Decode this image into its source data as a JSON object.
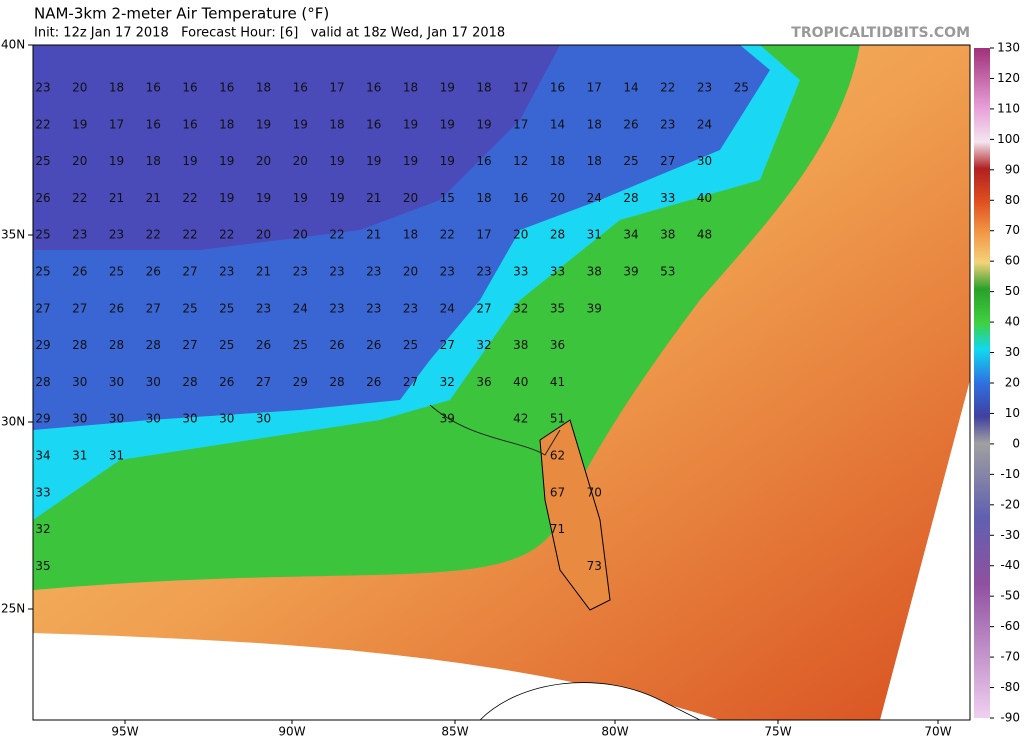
{
  "header": {
    "title": "NAM-3km 2-meter Air Temperature (°F)",
    "subtitle": "Init: 12z Jan 17 2018   Forecast Hour: [6]   valid at 18z Wed, Jan 17 2018",
    "brand": "TROPICALTIDBITS.COM"
  },
  "latitude_labels": [
    "40N",
    "35N",
    "30N",
    "25N"
  ],
  "longitude_labels": [
    "95W",
    "90W",
    "85W",
    "80W",
    "75W",
    "70W"
  ],
  "colorbar_ticks": [
    130,
    120,
    110,
    100,
    90,
    80,
    70,
    60,
    50,
    40,
    30,
    20,
    10,
    0,
    -10,
    -20,
    -30,
    -40,
    -50,
    -60,
    -70,
    -80,
    -90
  ],
  "station_grid": [
    [
      23,
      20,
      18,
      16,
      16,
      16,
      18,
      16,
      17,
      16,
      18,
      19,
      18,
      17,
      16,
      17,
      14,
      22,
      23,
      25
    ],
    [
      22,
      19,
      17,
      16,
      16,
      18,
      19,
      19,
      18,
      16,
      19,
      19,
      19,
      17,
      14,
      18,
      26,
      23,
      24,
      null
    ],
    [
      25,
      20,
      19,
      18,
      19,
      19,
      20,
      20,
      19,
      19,
      19,
      19,
      16,
      12,
      18,
      18,
      25,
      27,
      30,
      null
    ],
    [
      26,
      22,
      21,
      21,
      22,
      19,
      19,
      19,
      19,
      21,
      20,
      15,
      18,
      16,
      20,
      24,
      28,
      33,
      40,
      null
    ],
    [
      25,
      23,
      23,
      22,
      22,
      22,
      20,
      20,
      22,
      21,
      18,
      22,
      17,
      20,
      28,
      31,
      34,
      38,
      48,
      null
    ],
    [
      25,
      26,
      25,
      26,
      27,
      23,
      21,
      23,
      23,
      23,
      20,
      23,
      23,
      33,
      33,
      38,
      39,
      53,
      null,
      null
    ],
    [
      27,
      27,
      26,
      27,
      25,
      25,
      23,
      24,
      23,
      23,
      23,
      24,
      27,
      32,
      35,
      39,
      null,
      null,
      null,
      null
    ],
    [
      29,
      28,
      28,
      28,
      27,
      25,
      26,
      25,
      26,
      26,
      25,
      27,
      32,
      38,
      36,
      null,
      null,
      null,
      null,
      null
    ],
    [
      28,
      30,
      30,
      30,
      28,
      26,
      27,
      29,
      28,
      26,
      27,
      32,
      36,
      40,
      41,
      null,
      null,
      null,
      null,
      null
    ],
    [
      29,
      30,
      30,
      30,
      30,
      30,
      30,
      null,
      null,
      null,
      null,
      39,
      null,
      42,
      51,
      null,
      null,
      null,
      null,
      null
    ],
    [
      34,
      31,
      31,
      null,
      null,
      null,
      null,
      null,
      null,
      null,
      null,
      null,
      null,
      null,
      62,
      null,
      null,
      null,
      null,
      null
    ],
    [
      33,
      null,
      null,
      null,
      null,
      null,
      null,
      null,
      null,
      null,
      null,
      null,
      null,
      null,
      67,
      70,
      null,
      null,
      null,
      null
    ],
    [
      32,
      null,
      null,
      null,
      null,
      null,
      null,
      null,
      null,
      null,
      null,
      null,
      null,
      null,
      71,
      null,
      null,
      null,
      null,
      null
    ],
    [
      35,
      null,
      null,
      null,
      null,
      null,
      null,
      null,
      null,
      null,
      null,
      null,
      null,
      null,
      null,
      73,
      null,
      null,
      null,
      null
    ]
  ]
}
